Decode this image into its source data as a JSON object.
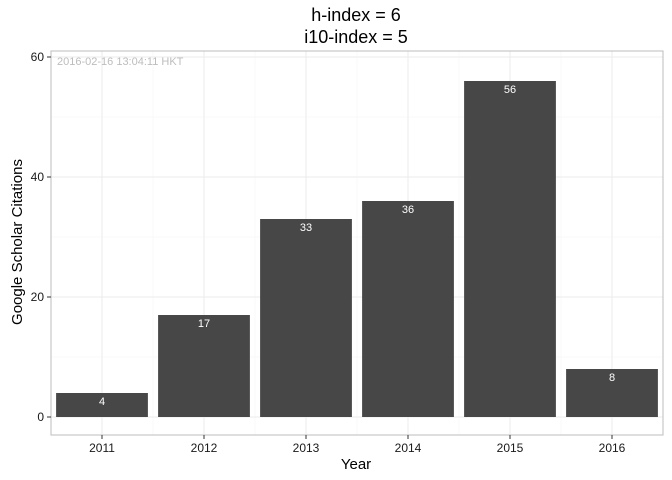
{
  "chart_data": {
    "type": "bar",
    "title_line1": "h-index = 6",
    "title_line2": "i10-index = 5",
    "xlabel": "Year",
    "ylabel": "Google Scholar Citations",
    "categories": [
      "2011",
      "2012",
      "2013",
      "2014",
      "2015",
      "2016"
    ],
    "values": [
      4,
      17,
      33,
      36,
      56,
      8
    ],
    "data_labels": [
      "4",
      "17",
      "33",
      "36",
      "56",
      "8"
    ],
    "ylim": [
      -3,
      61
    ],
    "yticks": [
      0,
      20,
      40,
      60
    ],
    "ytick_labels": [
      "0",
      "20",
      "40",
      "60"
    ],
    "grid": true,
    "annotation": "2016-02-16 13:04:11 HKT",
    "colors": {
      "bar": "#474747",
      "grid_major": "#ebebeb",
      "grid_minor": "#f5f5f5",
      "panel_border": "#bdbdbd",
      "annotation": "#bdbdbd"
    }
  }
}
